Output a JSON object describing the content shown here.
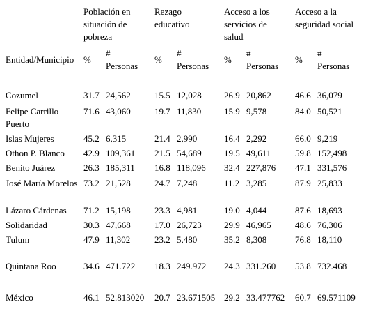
{
  "table": {
    "header": {
      "entity": "Entidad/Municipio",
      "groups": [
        {
          "title": "Población en situación de pobreza",
          "pct": "%",
          "count": "# Personas"
        },
        {
          "title": "Rezago educativo",
          "pct": "%",
          "count": "# Personas"
        },
        {
          "title": "Acceso a los servicios de salud",
          "pct": "%",
          "count": "# Personas"
        },
        {
          "title": "Acceso a la seguridad social",
          "pct": "%",
          "count": "# Personas"
        }
      ]
    },
    "rows": [
      [
        "Cozumel",
        "31.7",
        "24,562",
        "15.5",
        "12,028",
        "26.9",
        "20,862",
        "46.6",
        "36,079"
      ],
      [
        "Felipe Carrillo Puerto",
        "71.6",
        "43,060",
        "19.7",
        "11,830",
        "15.9",
        "9,578",
        "84.0",
        "50,521"
      ],
      [
        "Islas Mujeres",
        "45.2",
        "6,315",
        "21.4",
        "2,990",
        "16.4",
        "2,292",
        "66.0",
        "9,219"
      ],
      [
        "Othon P. Blanco",
        "42.9",
        "109,361",
        "21.5",
        "54,689",
        "19.5",
        "49,611",
        "59.8",
        "152,498"
      ],
      [
        "Benito Juárez",
        "26.3",
        "185,311",
        "16.8",
        "118,096",
        "32.4",
        "227,876",
        "47.1",
        "331,576"
      ],
      [
        "José María Morelos",
        "73.2",
        "21,528",
        "24.7",
        "7,248",
        "11.2",
        "3,285",
        "87.9",
        "25,833"
      ],
      [
        "Lázaro Cárdenas",
        "71.2",
        "15,198",
        "23.3",
        "4,981",
        "19.0",
        "4,044",
        "87.6",
        "18,693"
      ],
      [
        "Solidaridad",
        "30.3",
        "47,668",
        "17.0",
        "26,723",
        "29.9",
        "46,965",
        "48.6",
        "76,306"
      ],
      [
        "Tulum",
        "47.9",
        "11,302",
        "23.2",
        "5,480",
        "35.2",
        "8,308",
        "76.8",
        "18,110"
      ],
      [
        "Quintana Roo",
        "34.6",
        "471.722",
        "18.3",
        "249.972",
        "24.3",
        "331.260",
        "53.8",
        "732.468"
      ],
      [
        "México",
        "46.1",
        "52.813020",
        "20.7",
        "23.671505",
        "29.2",
        "33.477762",
        "60.7",
        "69.571109"
      ]
    ]
  }
}
